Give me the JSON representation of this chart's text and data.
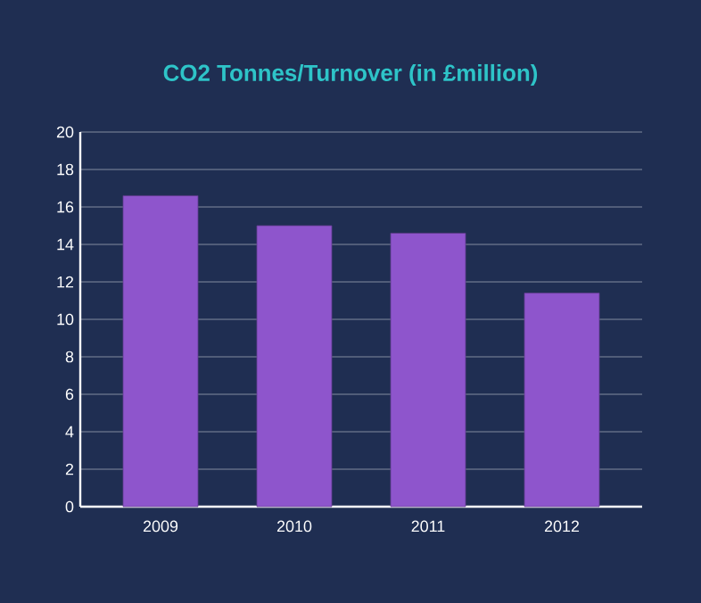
{
  "chart_data": {
    "type": "bar",
    "title": "CO2 Tonnes/Turnover (in £million)",
    "categories": [
      "2009",
      "2010",
      "2011",
      "2012"
    ],
    "values": [
      16.6,
      15.0,
      14.6,
      11.4
    ],
    "color": "#8e55cc",
    "ylim": [
      0,
      20
    ],
    "yticks": [
      0,
      2,
      4,
      6,
      8,
      10,
      12,
      14,
      16,
      18,
      20
    ],
    "grid": "y"
  }
}
